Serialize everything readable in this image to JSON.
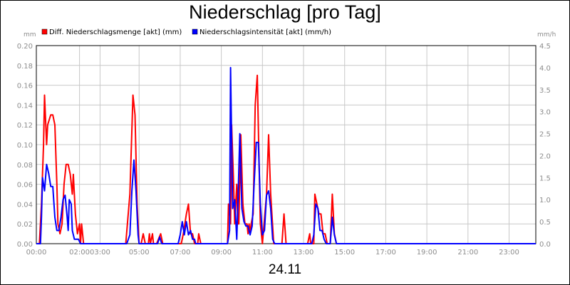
{
  "title": "Niederschlag [pro Tag]",
  "date_label": "24.11",
  "colors": {
    "menge": "#ff0000",
    "intensitaet": "#0000ff",
    "grid": "#c8c8c8",
    "tick_text": "#8c8c8c"
  },
  "chart_data": {
    "type": "line",
    "left_axis": {
      "unit": "mm",
      "ylim": [
        0,
        0.2
      ],
      "ticks": [
        "0.00",
        "0.02",
        "0.04",
        "0.06",
        "0.08",
        "0.10",
        "0.12",
        "0.14",
        "0.16",
        "0.18",
        "0.20"
      ]
    },
    "right_axis": {
      "unit": "mm/h",
      "ylim": [
        0,
        4.5
      ],
      "ticks": [
        "0.0",
        "0.5",
        "1.0",
        "1.5",
        "2.0",
        "2.5",
        "3.0",
        "3.5",
        "4.0",
        "4.5"
      ]
    },
    "x_ticks": [
      {
        "t": 0,
        "label": "00:00"
      },
      {
        "t": 2.1,
        "label": "02:00"
      },
      {
        "t": 3.1,
        "label": "03:00"
      },
      {
        "t": 5.0,
        "label": "05:00"
      },
      {
        "t": 7.0,
        "label": "07:00"
      },
      {
        "t": 9.0,
        "label": "09:00"
      },
      {
        "t": 11.0,
        "label": "11:00"
      },
      {
        "t": 13.0,
        "label": "13:00"
      },
      {
        "t": 15.0,
        "label": "15:00"
      },
      {
        "t": 17.0,
        "label": "17:00"
      },
      {
        "t": 19.0,
        "label": "19:00"
      },
      {
        "t": 21.0,
        "label": "21:00"
      },
      {
        "t": 23.0,
        "label": "23:00"
      }
    ],
    "x_range": [
      0,
      24.3
    ],
    "legend": "top-left",
    "series": [
      {
        "name": "Diff. Niederschlagsmenge [akt] (mm)",
        "axis": "left",
        "color": "#ff0000",
        "points": [
          [
            0,
            0
          ],
          [
            0.15,
            0
          ],
          [
            0.25,
            0.04
          ],
          [
            0.35,
            0.1
          ],
          [
            0.4,
            0.15
          ],
          [
            0.5,
            0.1
          ],
          [
            0.55,
            0.12
          ],
          [
            0.7,
            0.13
          ],
          [
            0.8,
            0.13
          ],
          [
            0.9,
            0.12
          ],
          [
            1.0,
            0.06
          ],
          [
            1.05,
            0.02
          ],
          [
            1.15,
            0.01
          ],
          [
            1.25,
            0.02
          ],
          [
            1.35,
            0.06
          ],
          [
            1.45,
            0.08
          ],
          [
            1.55,
            0.08
          ],
          [
            1.65,
            0.07
          ],
          [
            1.75,
            0.05
          ],
          [
            1.8,
            0.07
          ],
          [
            1.9,
            0.03
          ],
          [
            2.0,
            0.01
          ],
          [
            2.1,
            0.02
          ],
          [
            2.15,
            0
          ],
          [
            2.2,
            0.02
          ],
          [
            2.3,
            0
          ],
          [
            2.4,
            0
          ],
          [
            4.35,
            0
          ],
          [
            4.55,
            0.05
          ],
          [
            4.7,
            0.15
          ],
          [
            4.8,
            0.13
          ],
          [
            4.9,
            0.04
          ],
          [
            5.0,
            0
          ],
          [
            5.1,
            0
          ],
          [
            5.2,
            0.01
          ],
          [
            5.3,
            0
          ],
          [
            5.45,
            0
          ],
          [
            5.5,
            0.01
          ],
          [
            5.55,
            0
          ],
          [
            5.65,
            0.01
          ],
          [
            5.7,
            0
          ],
          [
            5.85,
            0
          ],
          [
            6.05,
            0.01
          ],
          [
            6.15,
            0
          ],
          [
            7.05,
            0
          ],
          [
            7.15,
            0.01
          ],
          [
            7.3,
            0.03
          ],
          [
            7.4,
            0.04
          ],
          [
            7.5,
            0.01
          ],
          [
            7.6,
            0.01
          ],
          [
            7.7,
            0
          ],
          [
            7.85,
            0
          ],
          [
            7.9,
            0.01
          ],
          [
            8.0,
            0
          ],
          [
            9.3,
            0
          ],
          [
            9.35,
            0.04
          ],
          [
            9.45,
            0.02
          ],
          [
            9.5,
            0.12
          ],
          [
            9.6,
            0.06
          ],
          [
            9.65,
            0.02
          ],
          [
            9.75,
            0.06
          ],
          [
            9.8,
            0.02
          ],
          [
            9.85,
            0.02
          ],
          [
            9.95,
            0.11
          ],
          [
            10.05,
            0.04
          ],
          [
            10.15,
            0.02
          ],
          [
            10.25,
            0.02
          ],
          [
            10.3,
            0.01
          ],
          [
            10.35,
            0.02
          ],
          [
            10.4,
            0.01
          ],
          [
            10.45,
            0.02
          ],
          [
            10.55,
            0.03
          ],
          [
            10.65,
            0.14
          ],
          [
            10.75,
            0.17
          ],
          [
            10.9,
            0.02
          ],
          [
            11.0,
            0
          ],
          [
            11.2,
            0.05
          ],
          [
            11.3,
            0.11
          ],
          [
            11.4,
            0.05
          ],
          [
            11.55,
            0
          ],
          [
            11.95,
            0
          ],
          [
            12.05,
            0.03
          ],
          [
            12.15,
            0
          ],
          [
            13.2,
            0
          ],
          [
            13.3,
            0.01
          ],
          [
            13.35,
            0
          ],
          [
            13.5,
            0
          ],
          [
            13.55,
            0.05
          ],
          [
            13.65,
            0.04
          ],
          [
            13.75,
            0.03
          ],
          [
            13.85,
            0.03
          ],
          [
            13.95,
            0.01
          ],
          [
            14.05,
            0.01
          ],
          [
            14.15,
            0
          ],
          [
            14.3,
            0
          ],
          [
            14.4,
            0.05
          ],
          [
            14.5,
            0.01
          ],
          [
            14.6,
            0
          ],
          [
            24.3,
            0
          ]
        ]
      },
      {
        "name": "Niederschlagsintensität [akt] (mm/h)",
        "axis": "right",
        "color": "#0000ff",
        "points": [
          [
            0,
            0
          ],
          [
            0.2,
            0
          ],
          [
            0.25,
            0.6
          ],
          [
            0.3,
            1.5
          ],
          [
            0.4,
            1.2
          ],
          [
            0.5,
            1.8
          ],
          [
            0.6,
            1.6
          ],
          [
            0.7,
            1.3
          ],
          [
            0.8,
            1.3
          ],
          [
            0.9,
            0.6
          ],
          [
            1.0,
            0.3
          ],
          [
            1.1,
            0.3
          ],
          [
            1.2,
            0.6
          ],
          [
            1.3,
            1.0
          ],
          [
            1.4,
            1.1
          ],
          [
            1.5,
            0.6
          ],
          [
            1.55,
            0.3
          ],
          [
            1.6,
            1.0
          ],
          [
            1.7,
            0.9
          ],
          [
            1.75,
            0.3
          ],
          [
            1.85,
            0.1
          ],
          [
            1.95,
            0.1
          ],
          [
            2.05,
            0.1
          ],
          [
            2.15,
            0
          ],
          [
            2.3,
            0
          ],
          [
            4.4,
            0
          ],
          [
            4.55,
            0.2
          ],
          [
            4.65,
            1.2
          ],
          [
            4.75,
            1.9
          ],
          [
            4.85,
            1.2
          ],
          [
            4.95,
            0.2
          ],
          [
            5.0,
            0
          ],
          [
            5.9,
            0
          ],
          [
            6.0,
            0.15
          ],
          [
            6.1,
            0
          ],
          [
            6.9,
            0
          ],
          [
            7.0,
            0.2
          ],
          [
            7.1,
            0.5
          ],
          [
            7.2,
            0.2
          ],
          [
            7.3,
            0.5
          ],
          [
            7.4,
            0.2
          ],
          [
            7.5,
            0.3
          ],
          [
            7.6,
            0.1
          ],
          [
            7.7,
            0.1
          ],
          [
            7.75,
            0
          ],
          [
            9.3,
            0
          ],
          [
            9.4,
            0.3
          ],
          [
            9.45,
            4.0
          ],
          [
            9.55,
            0.8
          ],
          [
            9.65,
            1.0
          ],
          [
            9.75,
            0.1
          ],
          [
            9.8,
            0.8
          ],
          [
            9.9,
            2.5
          ],
          [
            10.0,
            0.8
          ],
          [
            10.1,
            0.5
          ],
          [
            10.2,
            0.4
          ],
          [
            10.3,
            0.4
          ],
          [
            10.4,
            0.2
          ],
          [
            10.5,
            0.4
          ],
          [
            10.6,
            1.4
          ],
          [
            10.7,
            2.3
          ],
          [
            10.8,
            2.3
          ],
          [
            10.9,
            0.9
          ],
          [
            11.0,
            0.2
          ],
          [
            11.1,
            0.3
          ],
          [
            11.2,
            1.1
          ],
          [
            11.3,
            1.2
          ],
          [
            11.4,
            0.8
          ],
          [
            11.5,
            0.1
          ],
          [
            11.6,
            0
          ],
          [
            13.4,
            0
          ],
          [
            13.5,
            0.2
          ],
          [
            13.6,
            0.9
          ],
          [
            13.7,
            0.8
          ],
          [
            13.8,
            0.3
          ],
          [
            13.9,
            0.3
          ],
          [
            14.0,
            0.1
          ],
          [
            14.1,
            0
          ],
          [
            14.3,
            0
          ],
          [
            14.4,
            0.6
          ],
          [
            14.5,
            0.2
          ],
          [
            14.6,
            0
          ],
          [
            24.3,
            0
          ]
        ]
      }
    ]
  }
}
